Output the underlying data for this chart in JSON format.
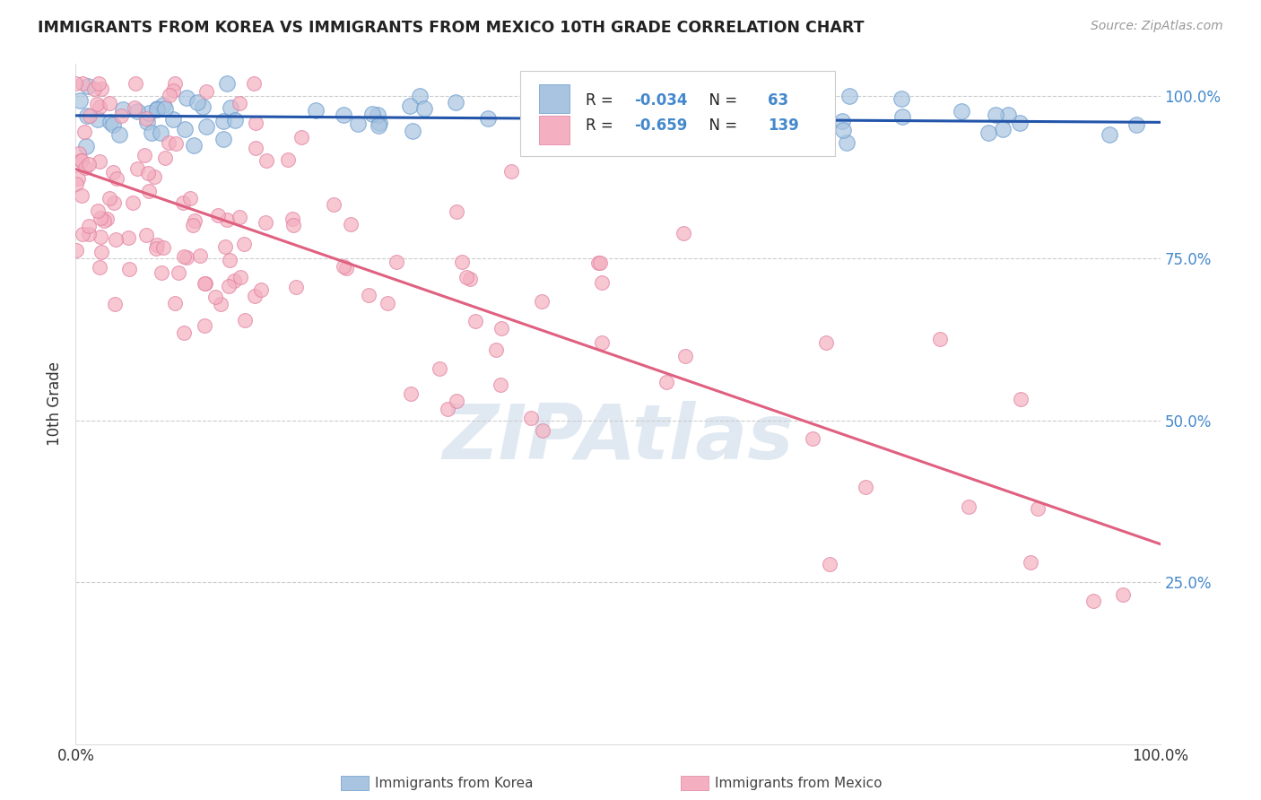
{
  "title": "IMMIGRANTS FROM KOREA VS IMMIGRANTS FROM MEXICO 10TH GRADE CORRELATION CHART",
  "source": "Source: ZipAtlas.com",
  "ylabel": "10th Grade",
  "legend_korea": "Immigrants from Korea",
  "legend_mexico": "Immigrants from Mexico",
  "R_korea": -0.034,
  "N_korea": 63,
  "R_mexico": -0.659,
  "N_mexico": 139,
  "korea_color": "#a8c4e0",
  "korea_edge_color": "#6699cc",
  "mexico_color": "#f4b0c0",
  "mexico_edge_color": "#e080a0",
  "korea_line_color": "#2255aa",
  "mexico_line_color": "#e06080",
  "tick_label_color": "#4488cc",
  "background_color": "#ffffff",
  "grid_color": "#cccccc",
  "watermark_color": "#c8d8e8"
}
